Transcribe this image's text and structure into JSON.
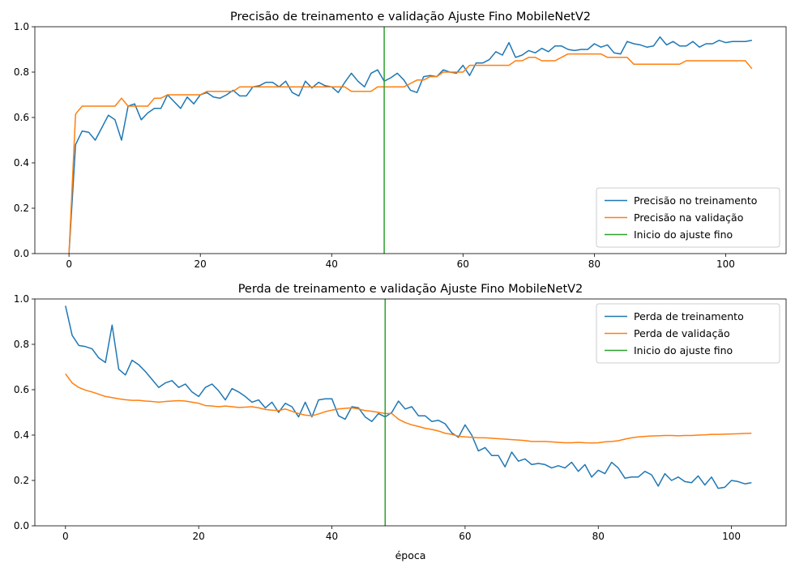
{
  "chart_data": [
    {
      "type": "line",
      "title": "Precisão de treinamento e validação Ajuste Fino MobileNetV2",
      "xlabel": "",
      "ylabel": "",
      "xlim": [
        -5.2,
        109.2
      ],
      "ylim": [
        0.0,
        1.0
      ],
      "xticks": [
        0,
        20,
        40,
        60,
        80,
        100
      ],
      "yticks": [
        0.0,
        0.2,
        0.4,
        0.6,
        0.8,
        1.0
      ],
      "xtick_labels": [
        "0",
        "20",
        "40",
        "60",
        "80",
        "100"
      ],
      "ytick_labels": [
        "0.0",
        "0.2",
        "0.4",
        "0.6",
        "0.8",
        "1.0"
      ],
      "grid": false,
      "legend_position": "lower-right",
      "vline": {
        "x": 48,
        "name": "Inicio do ajuste fino",
        "color": "#2ca02c"
      },
      "series": [
        {
          "name": "Precisão no treinamento",
          "color": "#1f77b4",
          "values": [
            0.0,
            0.48,
            0.54,
            0.535,
            0.5,
            0.555,
            0.61,
            0.59,
            0.5,
            0.65,
            0.66,
            0.59,
            0.62,
            0.64,
            0.64,
            0.7,
            0.67,
            0.64,
            0.69,
            0.66,
            0.7,
            0.71,
            0.69,
            0.685,
            0.7,
            0.72,
            0.695,
            0.695,
            0.735,
            0.74,
            0.755,
            0.755,
            0.735,
            0.76,
            0.71,
            0.695,
            0.76,
            0.73,
            0.755,
            0.74,
            0.735,
            0.71,
            0.755,
            0.795,
            0.76,
            0.735,
            0.795,
            0.81,
            0.76,
            0.775,
            0.795,
            0.765,
            0.72,
            0.71,
            0.78,
            0.785,
            0.78,
            0.81,
            0.8,
            0.795,
            0.83,
            0.785,
            0.84,
            0.84,
            0.855,
            0.89,
            0.875,
            0.93,
            0.865,
            0.875,
            0.895,
            0.885,
            0.905,
            0.89,
            0.915,
            0.915,
            0.9,
            0.895,
            0.9,
            0.9,
            0.925,
            0.91,
            0.92,
            0.885,
            0.88,
            0.935,
            0.925,
            0.92,
            0.91,
            0.915,
            0.955,
            0.92,
            0.935,
            0.915,
            0.915,
            0.935,
            0.91,
            0.925,
            0.925,
            0.94,
            0.93,
            0.935,
            0.935,
            0.935,
            0.94
          ]
        },
        {
          "name": "Precisão na validação",
          "color": "#ff7f0e",
          "values": [
            0.0,
            0.615,
            0.65,
            0.65,
            0.65,
            0.65,
            0.65,
            0.65,
            0.685,
            0.65,
            0.65,
            0.65,
            0.65,
            0.685,
            0.685,
            0.7,
            0.7,
            0.7,
            0.7,
            0.7,
            0.7,
            0.715,
            0.715,
            0.715,
            0.715,
            0.715,
            0.735,
            0.735,
            0.735,
            0.735,
            0.735,
            0.735,
            0.735,
            0.735,
            0.735,
            0.735,
            0.735,
            0.735,
            0.735,
            0.735,
            0.735,
            0.735,
            0.735,
            0.715,
            0.715,
            0.715,
            0.715,
            0.735,
            0.735,
            0.735,
            0.735,
            0.735,
            0.75,
            0.765,
            0.765,
            0.78,
            0.78,
            0.8,
            0.8,
            0.8,
            0.8,
            0.83,
            0.83,
            0.83,
            0.83,
            0.83,
            0.83,
            0.83,
            0.85,
            0.85,
            0.865,
            0.865,
            0.85,
            0.85,
            0.85,
            0.865,
            0.88,
            0.88,
            0.88,
            0.88,
            0.88,
            0.88,
            0.865,
            0.865,
            0.865,
            0.865,
            0.835,
            0.835,
            0.835,
            0.835,
            0.835,
            0.835,
            0.835,
            0.835,
            0.85,
            0.85,
            0.85,
            0.85,
            0.85,
            0.85,
            0.85,
            0.85,
            0.85,
            0.85,
            0.815
          ]
        }
      ]
    },
    {
      "type": "line",
      "title": "Perda de treinamento e validação Ajuste Fino MobileNetV2",
      "xlabel": "época",
      "ylabel": "",
      "xlim": [
        -4.6,
        108.2
      ],
      "ylim": [
        0.0,
        1.0
      ],
      "xticks": [
        0,
        20,
        40,
        60,
        80,
        100
      ],
      "yticks": [
        0.0,
        0.2,
        0.4,
        0.6,
        0.8,
        1.0
      ],
      "xtick_labels": [
        "0",
        "20",
        "40",
        "60",
        "80",
        "100"
      ],
      "ytick_labels": [
        "0.0",
        "0.2",
        "0.4",
        "0.6",
        "0.8",
        "1.0"
      ],
      "grid": false,
      "legend_position": "upper-right",
      "vline": {
        "x": 48,
        "name": "Inicio do ajuste fino",
        "color": "#2ca02c"
      },
      "series": [
        {
          "name": "Perda de treinamento",
          "color": "#1f77b4",
          "values": [
            0.97,
            0.84,
            0.795,
            0.79,
            0.78,
            0.74,
            0.72,
            0.885,
            0.69,
            0.665,
            0.73,
            0.71,
            0.68,
            0.645,
            0.61,
            0.63,
            0.64,
            0.61,
            0.625,
            0.59,
            0.57,
            0.61,
            0.625,
            0.595,
            0.555,
            0.605,
            0.59,
            0.57,
            0.545,
            0.555,
            0.52,
            0.545,
            0.5,
            0.54,
            0.525,
            0.48,
            0.545,
            0.48,
            0.555,
            0.56,
            0.56,
            0.485,
            0.47,
            0.525,
            0.52,
            0.48,
            0.46,
            0.495,
            0.48,
            0.5,
            0.55,
            0.515,
            0.525,
            0.485,
            0.485,
            0.46,
            0.465,
            0.45,
            0.41,
            0.39,
            0.445,
            0.4,
            0.33,
            0.345,
            0.31,
            0.31,
            0.26,
            0.325,
            0.285,
            0.295,
            0.27,
            0.275,
            0.27,
            0.255,
            0.265,
            0.255,
            0.28,
            0.24,
            0.27,
            0.215,
            0.245,
            0.23,
            0.28,
            0.255,
            0.21,
            0.215,
            0.215,
            0.24,
            0.225,
            0.175,
            0.23,
            0.2,
            0.215,
            0.195,
            0.19,
            0.22,
            0.18,
            0.215,
            0.165,
            0.17,
            0.2,
            0.195,
            0.185,
            0.19
          ]
        },
        {
          "name": "Perda de validação",
          "color": "#ff7f0e",
          "values": [
            0.67,
            0.63,
            0.61,
            0.598,
            0.59,
            0.58,
            0.57,
            0.565,
            0.56,
            0.556,
            0.553,
            0.553,
            0.55,
            0.548,
            0.545,
            0.548,
            0.55,
            0.552,
            0.55,
            0.545,
            0.54,
            0.53,
            0.528,
            0.525,
            0.528,
            0.525,
            0.522,
            0.523,
            0.525,
            0.52,
            0.513,
            0.51,
            0.508,
            0.515,
            0.505,
            0.495,
            0.488,
            0.485,
            0.493,
            0.503,
            0.51,
            0.515,
            0.518,
            0.52,
            0.515,
            0.508,
            0.505,
            0.5,
            0.495,
            0.495,
            0.47,
            0.455,
            0.445,
            0.438,
            0.43,
            0.425,
            0.418,
            0.408,
            0.403,
            0.395,
            0.392,
            0.39,
            0.388,
            0.388,
            0.386,
            0.384,
            0.382,
            0.38,
            0.378,
            0.376,
            0.372,
            0.372,
            0.372,
            0.37,
            0.368,
            0.366,
            0.366,
            0.368,
            0.366,
            0.365,
            0.366,
            0.37,
            0.372,
            0.375,
            0.382,
            0.388,
            0.392,
            0.394,
            0.396,
            0.397,
            0.398,
            0.398,
            0.397,
            0.398,
            0.398,
            0.4,
            0.401,
            0.403,
            0.403,
            0.404,
            0.405,
            0.406,
            0.407,
            0.408
          ]
        }
      ]
    }
  ]
}
